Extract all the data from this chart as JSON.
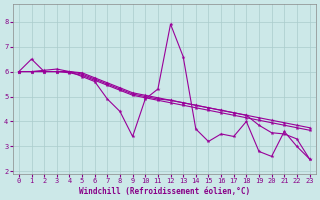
{
  "xlabel": "Windchill (Refroidissement éolien,°C)",
  "background_color": "#cce8e8",
  "grid_color": "#aacccc",
  "line_color": "#990099",
  "xlim": [
    -0.5,
    23.5
  ],
  "ylim": [
    1.9,
    8.7
  ],
  "yticks": [
    2,
    3,
    4,
    5,
    6,
    7,
    8
  ],
  "xticks": [
    0,
    1,
    2,
    3,
    4,
    5,
    6,
    7,
    8,
    9,
    10,
    11,
    12,
    13,
    14,
    15,
    16,
    17,
    18,
    19,
    20,
    21,
    22,
    23
  ],
  "lines": [
    [
      6.0,
      6.5,
      6.0,
      6.0,
      6.0,
      5.8,
      5.6,
      4.9,
      4.4,
      3.4,
      4.9,
      5.3,
      7.9,
      6.6,
      3.7,
      3.2,
      3.5,
      3.4,
      4.0,
      2.8,
      2.6,
      3.6,
      3.0,
      2.5
    ],
    [
      6.0,
      6.0,
      6.0,
      6.0,
      5.95,
      5.85,
      5.65,
      5.45,
      5.25,
      5.05,
      4.95,
      4.85,
      4.75,
      4.65,
      4.55,
      4.45,
      4.35,
      4.25,
      4.15,
      4.05,
      3.95,
      3.85,
      3.75,
      3.65
    ],
    [
      6.0,
      6.0,
      6.05,
      6.1,
      6.0,
      5.9,
      5.7,
      5.5,
      5.3,
      5.1,
      5.0,
      4.9,
      4.85,
      4.75,
      4.65,
      4.55,
      4.45,
      4.35,
      4.25,
      3.85,
      3.55,
      3.5,
      3.3,
      2.5
    ],
    [
      6.0,
      6.0,
      6.0,
      6.0,
      6.0,
      5.95,
      5.75,
      5.55,
      5.35,
      5.15,
      5.05,
      4.95,
      4.85,
      4.75,
      4.65,
      4.55,
      4.45,
      4.35,
      4.25,
      4.15,
      4.05,
      3.95,
      3.85,
      3.75
    ]
  ],
  "xlabel_color": "#880088",
  "xlabel_fontsize": 5.5,
  "tick_fontsize": 5.0,
  "tick_color": "#880088"
}
